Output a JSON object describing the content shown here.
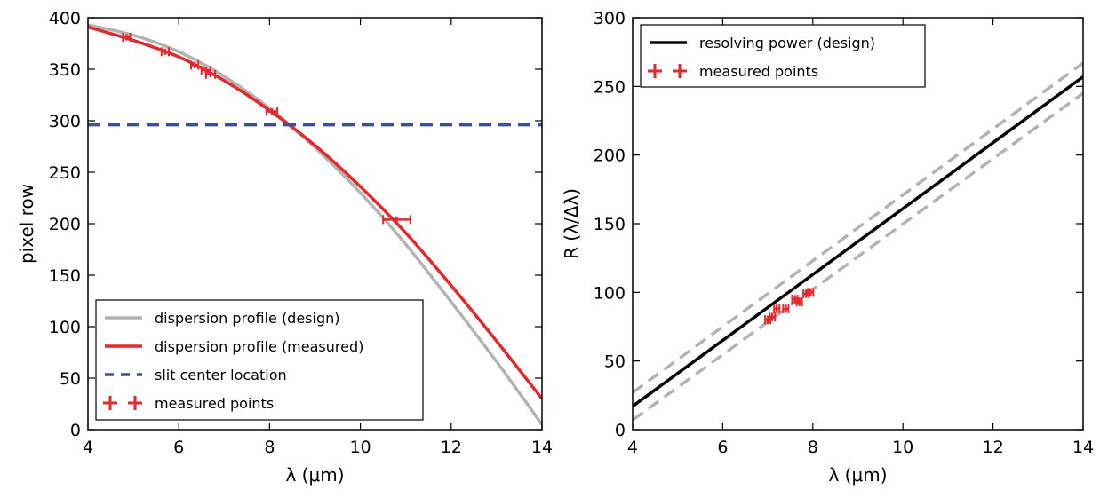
{
  "chart_data": [
    {
      "type": "line",
      "xlabel": "λ (μm)",
      "ylabel": "pixel row",
      "xlim": [
        4,
        14
      ],
      "ylim": [
        0,
        400
      ],
      "xticks": [
        4,
        6,
        8,
        10,
        12,
        14
      ],
      "yticks": [
        0,
        50,
        100,
        150,
        200,
        250,
        300,
        350,
        400
      ],
      "legend_position": "lower-left",
      "series": [
        {
          "name": "dispersion profile (design)",
          "style": "solid",
          "color": "#b3b3b3",
          "x": [
            4,
            5,
            6,
            7,
            8,
            9,
            10,
            11,
            12,
            13,
            14
          ],
          "y": [
            393,
            383,
            367,
            343,
            312,
            274,
            230,
            180,
            124,
            66,
            5
          ]
        },
        {
          "name": "dispersion profile (measured)",
          "style": "solid",
          "color": "#e8262b",
          "x": [
            4,
            5,
            6,
            7,
            8,
            9,
            10,
            11,
            12,
            13,
            14
          ],
          "y": [
            391,
            378,
            362,
            339,
            310,
            276,
            236,
            191,
            140,
            86,
            30
          ]
        },
        {
          "name": "slit center location",
          "style": "dashed",
          "color": "#3a4fa0",
          "x": [
            4,
            14
          ],
          "y": [
            296,
            296
          ]
        },
        {
          "name": "measured points",
          "style": "errorbar",
          "color": "#e8262b",
          "points": [
            {
              "x": 4.85,
              "y": 381,
              "xerr": 0.08,
              "yerr": 3
            },
            {
              "x": 5.7,
              "y": 367,
              "xerr": 0.08,
              "yerr": 3
            },
            {
              "x": 6.35,
              "y": 354,
              "xerr": 0.08,
              "yerr": 3
            },
            {
              "x": 6.6,
              "y": 349,
              "xerr": 0.1,
              "yerr": 3
            },
            {
              "x": 6.7,
              "y": 345,
              "xerr": 0.1,
              "yerr": 3
            },
            {
              "x": 8.05,
              "y": 309,
              "xerr": 0.12,
              "yerr": 3
            },
            {
              "x": 10.8,
              "y": 204,
              "xerr": 0.3,
              "yerr": 3
            }
          ]
        }
      ],
      "legend": [
        "dispersion profile (design)",
        "dispersion profile (measured)",
        "slit center location",
        "measured points"
      ]
    },
    {
      "type": "line",
      "xlabel": "λ (μm)",
      "ylabel": "R (λ/Δλ)",
      "xlim": [
        4,
        14
      ],
      "ylim": [
        0,
        300
      ],
      "xticks": [
        4,
        6,
        8,
        10,
        12,
        14
      ],
      "yticks": [
        0,
        50,
        100,
        150,
        200,
        250,
        300
      ],
      "legend_position": "top-left",
      "series": [
        {
          "name": "resolving power (design)",
          "style": "solid",
          "color": "#000000",
          "x": [
            4,
            14
          ],
          "y": [
            17,
            257
          ]
        },
        {
          "style": "dashed",
          "color": "#b3b3b3",
          "x": [
            4,
            14
          ],
          "y": [
            27,
            267
          ]
        },
        {
          "style": "dashed",
          "color": "#b3b3b3",
          "x": [
            4,
            14
          ],
          "y": [
            7,
            245
          ]
        },
        {
          "name": "measured points",
          "style": "errorbar",
          "color": "#e8262b",
          "points": [
            {
              "x": 7.0,
              "y": 80,
              "xerr": 0.06,
              "yerr": 3
            },
            {
              "x": 7.1,
              "y": 82,
              "xerr": 0.06,
              "yerr": 3
            },
            {
              "x": 7.2,
              "y": 88,
              "xerr": 0.06,
              "yerr": 3
            },
            {
              "x": 7.4,
              "y": 88,
              "xerr": 0.06,
              "yerr": 3
            },
            {
              "x": 7.6,
              "y": 95,
              "xerr": 0.06,
              "yerr": 3
            },
            {
              "x": 7.7,
              "y": 93,
              "xerr": 0.06,
              "yerr": 3
            },
            {
              "x": 7.85,
              "y": 99,
              "xerr": 0.06,
              "yerr": 3
            },
            {
              "x": 7.95,
              "y": 100,
              "xerr": 0.06,
              "yerr": 3
            }
          ]
        }
      ],
      "legend": [
        "resolving power (design)",
        "measured points"
      ]
    }
  ]
}
